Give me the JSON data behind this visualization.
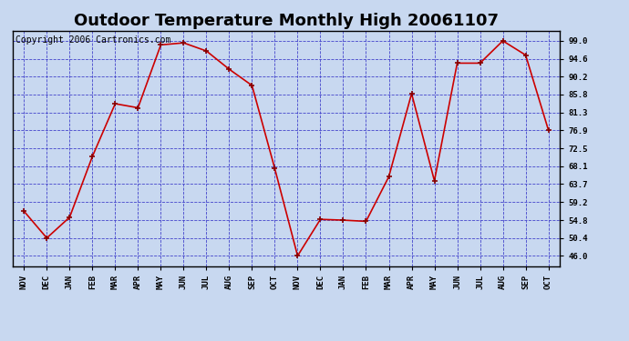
{
  "title": "Outdoor Temperature Monthly High 20061107",
  "copyright": "Copyright 2006 Cartronics.com",
  "x_labels": [
    "NOV",
    "DEC",
    "JAN",
    "FEB",
    "MAR",
    "APR",
    "MAY",
    "JUN",
    "JUL",
    "AUG",
    "SEP",
    "OCT",
    "NOV",
    "DEC",
    "JAN",
    "FEB",
    "MAR",
    "APR",
    "MAY",
    "JUN",
    "JUL",
    "AUG",
    "SEP",
    "OCT"
  ],
  "y_values": [
    57.0,
    50.4,
    55.5,
    70.5,
    83.5,
    82.5,
    98.0,
    98.5,
    96.5,
    92.0,
    88.0,
    67.5,
    46.0,
    55.0,
    54.8,
    54.5,
    65.5,
    86.0,
    64.5,
    93.5,
    93.5,
    99.0,
    95.5,
    77.0
  ],
  "line_color": "#cc0000",
  "marker_color": "#880000",
  "bg_color": "#c8d8f0",
  "plot_bg_color": "#c8d8f0",
  "grid_color": "#4444cc",
  "y_ticks": [
    46.0,
    50.4,
    54.8,
    59.2,
    63.7,
    68.1,
    72.5,
    76.9,
    81.3,
    85.8,
    90.2,
    94.6,
    99.0
  ],
  "ylim": [
    43.5,
    101.5
  ],
  "title_fontsize": 13,
  "copyright_fontsize": 7,
  "outer_bg": "#c8d8f0"
}
